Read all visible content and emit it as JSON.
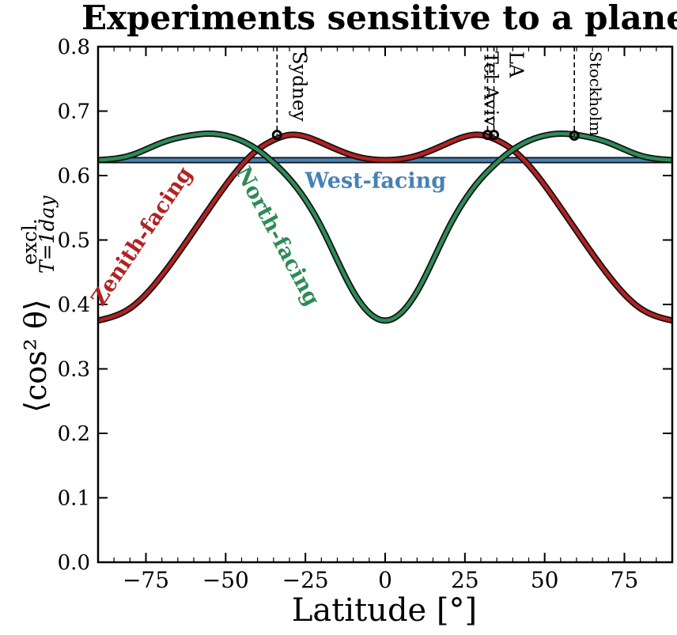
{
  "chart_data": {
    "type": "line",
    "title": "Experiments sensitive to a plane",
    "xlabel": "Latitude [°]",
    "ylabel": {
      "main": "⟨cos² θ⟩",
      "superscript": "excl.",
      "subscript": "T=1day"
    },
    "xlim": [
      -90,
      90
    ],
    "ylim": [
      0.0,
      0.8
    ],
    "x_ticks": [
      -75,
      -50,
      -25,
      0,
      25,
      50,
      75
    ],
    "x_tick_labels": [
      "−75",
      "−50",
      "−25",
      "0",
      "25",
      "50",
      "75"
    ],
    "y_ticks": [
      0.0,
      0.1,
      0.2,
      0.3,
      0.4,
      0.5,
      0.6,
      0.7,
      0.8
    ],
    "y_tick_labels": [
      "0.0",
      "0.1",
      "0.2",
      "0.3",
      "0.4",
      "0.5",
      "0.6",
      "0.7",
      "0.8"
    ],
    "grid": false,
    "x": [
      -90,
      -80,
      -70,
      -60,
      -55,
      -50,
      -40,
      -35,
      -30,
      -20,
      -10,
      0,
      10,
      20,
      30,
      35,
      40,
      50,
      55,
      60,
      70,
      80,
      90
    ],
    "series": [
      {
        "name": "Zenith-facing",
        "color": "#b22222",
        "values": [
          0.375,
          0.394,
          0.445,
          0.514,
          0.55,
          0.585,
          0.64,
          0.655,
          0.663,
          0.651,
          0.631,
          0.624,
          0.631,
          0.651,
          0.663,
          0.655,
          0.64,
          0.585,
          0.55,
          0.514,
          0.445,
          0.394,
          0.375
        ]
      },
      {
        "name": "North-facing",
        "color": "#2e8b57",
        "values": [
          0.624,
          0.631,
          0.651,
          0.663,
          0.665,
          0.662,
          0.64,
          0.62,
          0.595,
          0.52,
          0.42,
          0.375,
          0.42,
          0.52,
          0.595,
          0.62,
          0.64,
          0.662,
          0.665,
          0.663,
          0.651,
          0.631,
          0.624
        ]
      },
      {
        "name": "West-facing",
        "color": "#4682b4",
        "values": [
          0.624,
          0.624,
          0.624,
          0.624,
          0.624,
          0.624,
          0.624,
          0.624,
          0.624,
          0.624,
          0.624,
          0.624,
          0.624,
          0.624,
          0.624,
          0.624,
          0.624,
          0.624,
          0.624,
          0.624,
          0.624,
          0.624,
          0.624
        ]
      }
    ],
    "locations": [
      {
        "label": "Sydney",
        "lat": -33.9,
        "value": 0.663,
        "label_side": "right"
      },
      {
        "label": "Tel Aviv",
        "lat": 32.1,
        "value": 0.663,
        "label_side": "left"
      },
      {
        "label": "LA",
        "lat": 34.1,
        "value": 0.663,
        "label_side": "right"
      },
      {
        "label": "Stockholm",
        "lat": 59.3,
        "value": 0.662,
        "label_side": "right"
      }
    ],
    "annotations": [
      {
        "text": "Zenith-facing",
        "color": "#b22222",
        "x": -76,
        "y": 0.505,
        "rotation": -56
      },
      {
        "text": "North-facing",
        "color": "#2e8b57",
        "x": -34,
        "y": 0.505,
        "rotation": 62
      },
      {
        "text": "West-facing",
        "color": "#4682b4",
        "x": -3,
        "y": 0.59,
        "rotation": 0
      }
    ]
  }
}
